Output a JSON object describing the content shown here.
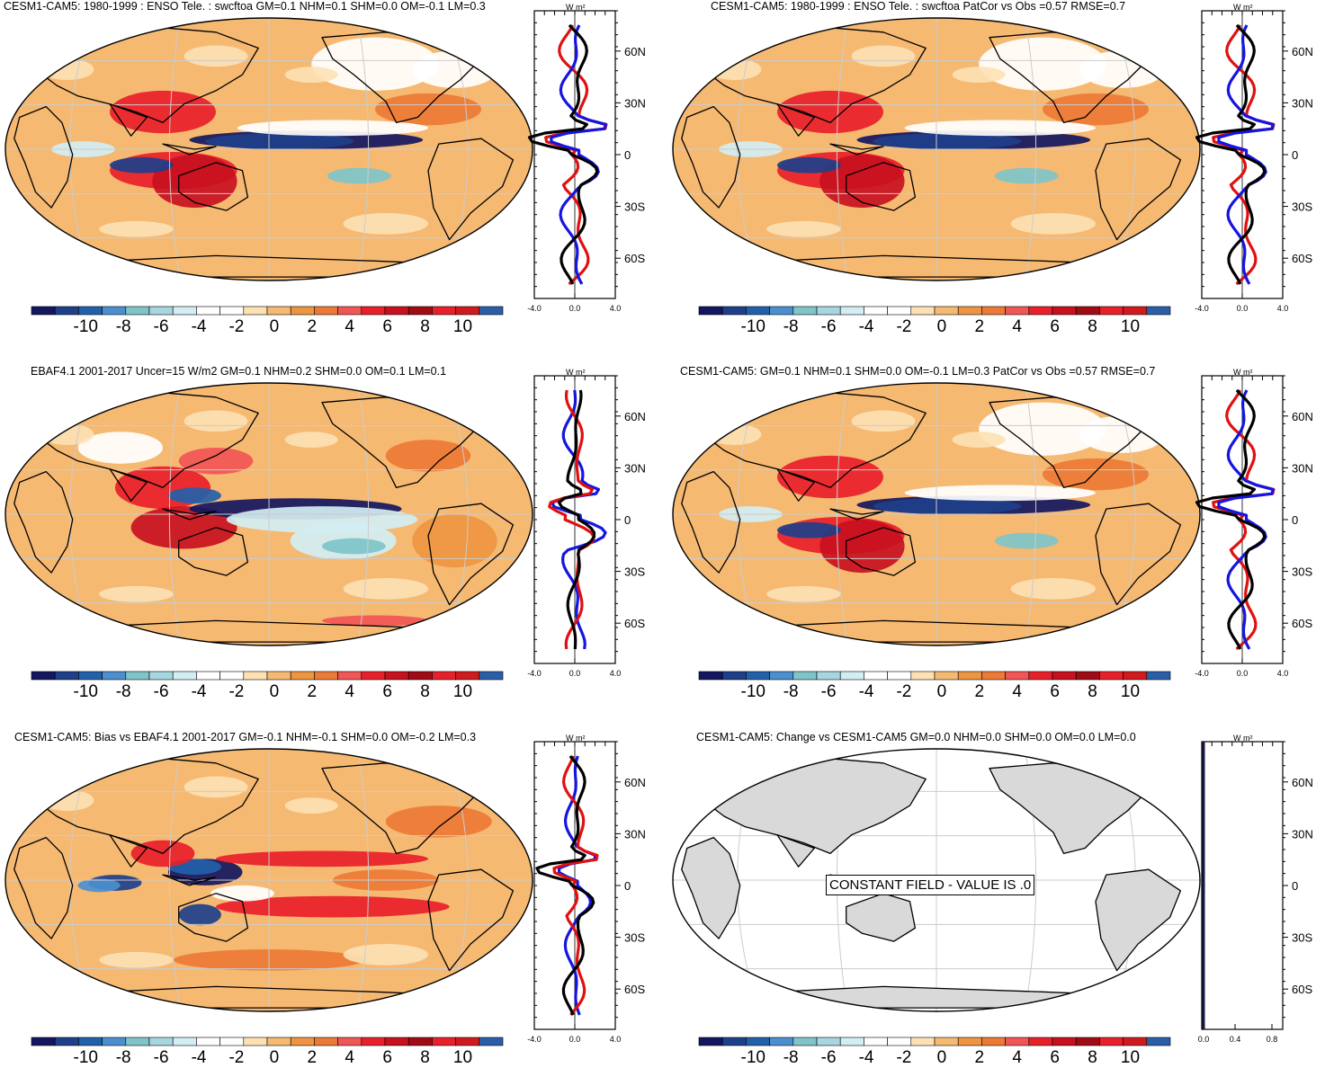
{
  "colorbar": {
    "colors": [
      "#141660",
      "#1e3f8a",
      "#2260aa",
      "#4b8fcf",
      "#7ec4c8",
      "#a6d7e0",
      "#d2eef3",
      "#ffffff",
      "#ffffff",
      "#fde1b5",
      "#f6b972",
      "#ee9541",
      "#ec7a36",
      "#f25555",
      "#e8202a",
      "#c8101f",
      "#a00b16",
      "#e8202a",
      "#d01a1e",
      "#2a5fa8"
    ],
    "labels": [
      "-10",
      "-8",
      "-6",
      "-4",
      "-2",
      "0",
      "2",
      "4",
      "6",
      "8",
      "10"
    ]
  },
  "profile": {
    "unit": "W m²",
    "lat_labels": [
      "60N",
      "30N",
      "0",
      "30S",
      "60S"
    ],
    "x_labels": [
      "-4.0",
      "0.0",
      "4.0"
    ],
    "x_labels_last": [
      "0.0",
      "0.4",
      "0.8"
    ]
  },
  "panels": [
    {
      "id": "p1",
      "title": "CESM1-CAM5: 1980-1999 : ENSO Tele. : swcftoa GM=0.1 NHM=0.1 SHM=0.0 OM=-0.1 LM=0.3",
      "kind": "model"
    },
    {
      "id": "p2",
      "title": "CESM1-CAM5: 1980-1999 : ENSO Tele. : swcftoa PatCor vs Obs =0.57 RMSE=0.7",
      "kind": "model"
    },
    {
      "id": "p3",
      "title": "EBAF4.1 2001-2017 Uncer=15 W/m2 GM=0.1 NHM=0.2 SHM=0.0 OM=0.1 LM=0.1",
      "kind": "obs"
    },
    {
      "id": "p4",
      "title": "CESM1-CAM5: GM=0.1 NHM=0.1 SHM=0.0 OM=-0.1 LM=0.3 PatCor vs Obs =0.57 RMSE=0.7",
      "kind": "model"
    },
    {
      "id": "p5",
      "title": "CESM1-CAM5: Bias vs EBAF4.1 2001-2017 GM=-0.1 NHM=-0.1 SHM=0.0 OM=-0.2 LM=0.3",
      "kind": "bias"
    },
    {
      "id": "p6",
      "title": "CESM1-CAM5: Change vs CESM1-CAM5 GM=0.0 NHM=0.0 SHM=0.0 OM=0.0 LM=0.0",
      "kind": "constant",
      "constant_label": "CONSTANT FIELD - VALUE IS .0"
    }
  ],
  "series_colors": {
    "model": "#e01010",
    "obs": "#1515e0",
    "bias": "#000000"
  }
}
